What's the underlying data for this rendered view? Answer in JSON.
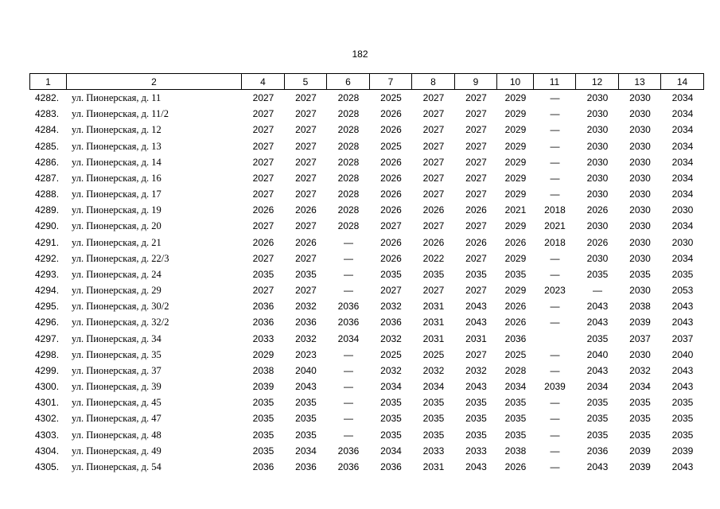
{
  "page_number": "182",
  "table": {
    "columns": [
      "1",
      "2",
      "4",
      "5",
      "6",
      "7",
      "8",
      "9",
      "10",
      "11",
      "12",
      "13",
      "14"
    ],
    "rows": [
      [
        "4282.",
        "ул. Пионерская, д. 11",
        "2027",
        "2027",
        "2028",
        "2025",
        "2027",
        "2027",
        "2029",
        "—",
        "2030",
        "2030",
        "2034"
      ],
      [
        "4283.",
        "ул. Пионерская, д. 11/2",
        "2027",
        "2027",
        "2028",
        "2026",
        "2027",
        "2027",
        "2029",
        "—",
        "2030",
        "2030",
        "2034"
      ],
      [
        "4284.",
        "ул. Пионерская, д. 12",
        "2027",
        "2027",
        "2028",
        "2026",
        "2027",
        "2027",
        "2029",
        "—",
        "2030",
        "2030",
        "2034"
      ],
      [
        "4285.",
        "ул. Пионерская, д. 13",
        "2027",
        "2027",
        "2028",
        "2025",
        "2027",
        "2027",
        "2029",
        "—",
        "2030",
        "2030",
        "2034"
      ],
      [
        "4286.",
        "ул. Пионерская, д. 14",
        "2027",
        "2027",
        "2028",
        "2026",
        "2027",
        "2027",
        "2029",
        "—",
        "2030",
        "2030",
        "2034"
      ],
      [
        "4287.",
        "ул. Пионерская, д. 16",
        "2027",
        "2027",
        "2028",
        "2026",
        "2027",
        "2027",
        "2029",
        "—",
        "2030",
        "2030",
        "2034"
      ],
      [
        "4288.",
        "ул. Пионерская, д. 17",
        "2027",
        "2027",
        "2028",
        "2026",
        "2027",
        "2027",
        "2029",
        "—",
        "2030",
        "2030",
        "2034"
      ],
      [
        "4289.",
        "ул. Пионерская, д. 19",
        "2026",
        "2026",
        "2028",
        "2026",
        "2026",
        "2026",
        "2021",
        "2018",
        "2026",
        "2030",
        "2030"
      ],
      [
        "4290.",
        "ул. Пионерская, д. 20",
        "2027",
        "2027",
        "2028",
        "2027",
        "2027",
        "2027",
        "2029",
        "2021",
        "2030",
        "2030",
        "2034"
      ],
      [
        "4291.",
        "ул. Пионерская, д. 21",
        "2026",
        "2026",
        "—",
        "2026",
        "2026",
        "2026",
        "2026",
        "2018",
        "2026",
        "2030",
        "2030"
      ],
      [
        "4292.",
        "ул. Пионерская, д. 22/3",
        "2027",
        "2027",
        "—",
        "2026",
        "2022",
        "2027",
        "2029",
        "—",
        "2030",
        "2030",
        "2034"
      ],
      [
        "4293.",
        "ул. Пионерская, д. 24",
        "2035",
        "2035",
        "—",
        "2035",
        "2035",
        "2035",
        "2035",
        "—",
        "2035",
        "2035",
        "2035"
      ],
      [
        "4294.",
        "ул. Пионерская, д. 29",
        "2027",
        "2027",
        "—",
        "2027",
        "2027",
        "2027",
        "2029",
        "2023",
        "—",
        "2030",
        "2053"
      ],
      [
        "4295.",
        "ул. Пионерская, д. 30/2",
        "2036",
        "2032",
        "2036",
        "2032",
        "2031",
        "2043",
        "2026",
        "—",
        "2043",
        "2038",
        "2043"
      ],
      [
        "4296.",
        "ул. Пионерская, д. 32/2",
        "2036",
        "2036",
        "2036",
        "2036",
        "2031",
        "2043",
        "2026",
        "—",
        "2043",
        "2039",
        "2043"
      ],
      [
        "4297.",
        "ул. Пионерская, д. 34",
        "2033",
        "2032",
        "2034",
        "2032",
        "2031",
        "2031",
        "2036",
        null,
        "2035",
        "2037",
        "2037"
      ],
      [
        "4298.",
        "ул. Пионерская, д. 35",
        "2029",
        "2023",
        "—",
        "2025",
        "2025",
        "2027",
        "2025",
        "—",
        "2040",
        "2030",
        "2040"
      ],
      [
        "4299.",
        "ул. Пионерская, д. 37",
        "2038",
        "2040",
        "—",
        "2032",
        "2032",
        "2032",
        "2028",
        "—",
        "2043",
        "2032",
        "2043"
      ],
      [
        "4300.",
        "ул. Пионерская, д. 39",
        "2039",
        "2043",
        "—",
        "2034",
        "2034",
        "2043",
        "2034",
        "2039",
        "2034",
        "2034",
        "2043"
      ],
      [
        "4301.",
        "ул. Пионерская, д. 45",
        "2035",
        "2035",
        "—",
        "2035",
        "2035",
        "2035",
        "2035",
        "—",
        "2035",
        "2035",
        "2035"
      ],
      [
        "4302.",
        "ул. Пионерская, д. 47",
        "2035",
        "2035",
        "—",
        "2035",
        "2035",
        "2035",
        "2035",
        "—",
        "2035",
        "2035",
        "2035"
      ],
      [
        "4303.",
        "ул. Пионерская, д. 48",
        "2035",
        "2035",
        "—",
        "2035",
        "2035",
        "2035",
        "2035",
        "—",
        "2035",
        "2035",
        "2035"
      ],
      [
        "4304.",
        "ул. Пионерская, д. 49",
        "2035",
        "2034",
        "2036",
        "2034",
        "2033",
        "2033",
        "2038",
        "—",
        "2036",
        "2039",
        "2039"
      ],
      [
        "4305.",
        "ул. Пионерская, д. 54",
        "2036",
        "2036",
        "2036",
        "2036",
        "2031",
        "2043",
        "2026",
        "—",
        "2043",
        "2039",
        "2043"
      ]
    ]
  }
}
